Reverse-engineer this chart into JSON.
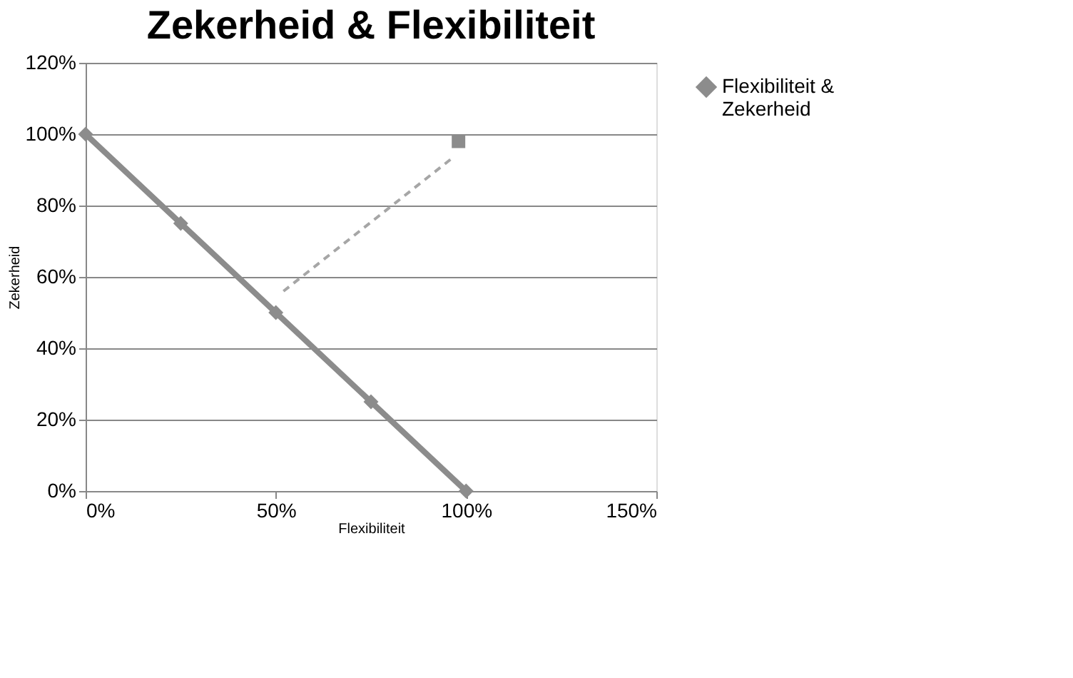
{
  "chart_data": {
    "type": "line",
    "title": "Zekerheid & Flexibiliteit",
    "xlabel": "Flexibiliteit",
    "ylabel": "Zekerheid",
    "xlim": [
      0,
      150
    ],
    "xticks": [
      {
        "value": 0,
        "label": "0%"
      },
      {
        "value": 50,
        "label": "50%"
      },
      {
        "value": 100,
        "label": "100%"
      },
      {
        "value": 150,
        "label": "150%"
      }
    ],
    "ylim": [
      0,
      120
    ],
    "yticks": [
      {
        "value": 0,
        "label": "0%"
      },
      {
        "value": 20,
        "label": "20%"
      },
      {
        "value": 40,
        "label": "40%"
      },
      {
        "value": 60,
        "label": "60%"
      },
      {
        "value": 80,
        "label": "80%"
      },
      {
        "value": 100,
        "label": "100%"
      },
      {
        "value": 120,
        "label": "120%"
      }
    ],
    "grid": "y",
    "legend": "right",
    "series": [
      {
        "name": "Flexibiliteit & Zekerheid",
        "color": "#8c8c8c",
        "marker": "diamond",
        "line_style": "solid",
        "x": [
          0,
          25,
          50,
          75,
          100
        ],
        "values": [
          100,
          75,
          50,
          25,
          0
        ]
      },
      {
        "color": "#a6a6a6",
        "marker": "none",
        "line_style": "dashed",
        "x": [
          52,
          96
        ],
        "values": [
          56,
          93
        ]
      },
      {
        "type": "scatter",
        "color": "#8c8c8c",
        "marker": "square",
        "x": [
          98
        ],
        "values": [
          98
        ]
      }
    ]
  }
}
